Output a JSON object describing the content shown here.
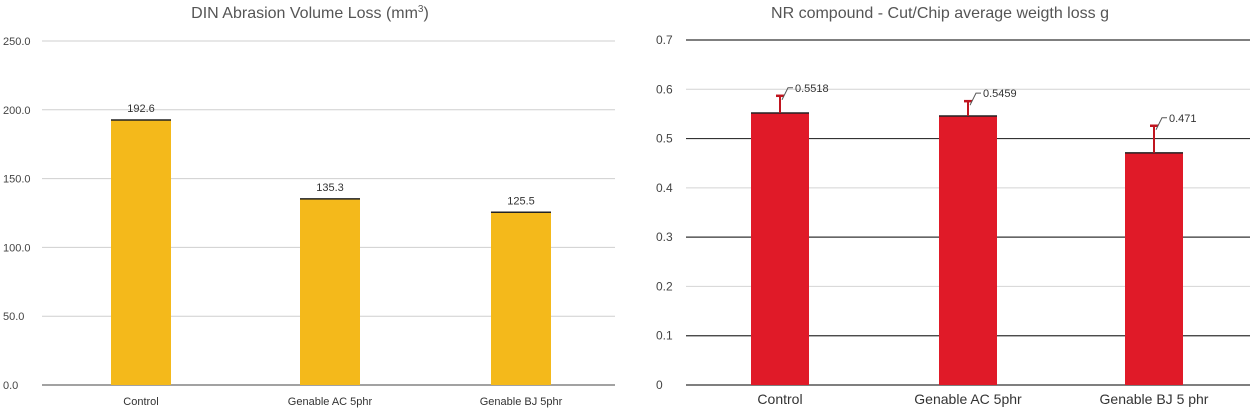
{
  "chart_data": [
    {
      "type": "bar",
      "title": "DIN Abrasion Volume Loss (mm",
      "title_superscript": "3",
      "title_suffix": ")",
      "categories": [
        "Control",
        "Genable AC 5phr",
        "Genable BJ 5phr"
      ],
      "values": [
        192.6,
        135.3,
        125.5
      ],
      "data_labels": [
        "192.6",
        "135.3",
        "125.5"
      ],
      "y_ticks": [
        "0.0",
        "50.0",
        "100.0",
        "150.0",
        "200.0",
        "250.0"
      ],
      "ylim": [
        0,
        250
      ],
      "grid": true,
      "bar_color": "#f4b91b"
    },
    {
      "type": "bar",
      "title": "NR compound - Cut/Chip average weigth loss g",
      "categories": [
        "Control",
        "Genable AC 5phr",
        "Genable BJ 5 phr"
      ],
      "values": [
        0.5518,
        0.5459,
        0.471
      ],
      "error_plus": [
        0.035,
        0.03,
        0.055
      ],
      "data_labels": [
        "0.5518",
        "0.5459",
        "0.471"
      ],
      "y_ticks": [
        "0",
        "0.1",
        "0.2",
        "0.3",
        "0.4",
        "0.5",
        "0.6",
        "0.7"
      ],
      "ylim": [
        0,
        0.7
      ],
      "grid": true,
      "bar_color": "#e01a28",
      "error_color": "#c0151f"
    }
  ]
}
